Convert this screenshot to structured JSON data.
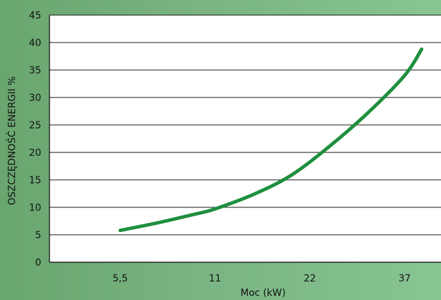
{
  "chart_data": {
    "type": "line",
    "title": "",
    "xlabel": "Moc (kW)",
    "ylabel": "OSZCZĘDNOŚĆ ENERGII %",
    "ylim": [
      0,
      45
    ],
    "yticks": [
      "0",
      "5",
      "10",
      "15",
      "20",
      "25",
      "30",
      "35",
      "40",
      "45"
    ],
    "xticks": [
      "5,5",
      "11",
      "22",
      "37"
    ],
    "grid": true,
    "line_color": "#1f8f3e",
    "series": [
      {
        "points": [
          {
            "x": 0.0,
            "y": 5.8
          },
          {
            "x": 0.4,
            "y": 7.2
          },
          {
            "x": 0.8,
            "y": 8.8
          },
          {
            "x": 1.0,
            "y": 9.7
          },
          {
            "x": 1.4,
            "y": 12.3
          },
          {
            "x": 1.8,
            "y": 15.8
          },
          {
            "x": 2.2,
            "y": 21.0
          },
          {
            "x": 2.6,
            "y": 27.0
          },
          {
            "x": 3.0,
            "y": 34.0
          },
          {
            "x": 3.18,
            "y": 38.8
          }
        ]
      }
    ]
  }
}
